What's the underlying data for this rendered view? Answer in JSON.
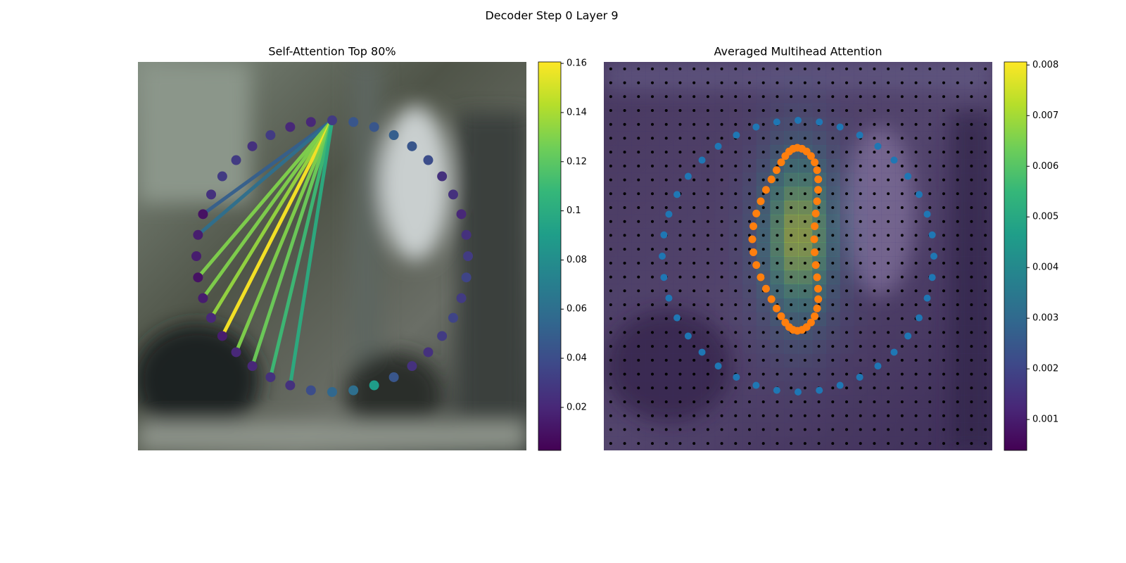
{
  "title": "Decoder Step 0 Layer 9",
  "chart_data": [
    {
      "type": "scatter",
      "title": "Self-Attention Top 80%",
      "colormap": "viridis",
      "values": [
        0.03,
        0.02,
        0.02,
        0.03,
        0.025,
        0.03,
        0.03,
        0.025,
        0.01,
        0.015,
        0.015,
        0.01,
        0.015,
        0.02,
        0.015,
        0.02,
        0.02,
        0.025,
        0.025,
        0.04,
        0.055,
        0.06,
        0.09,
        0.045,
        0.025,
        0.025,
        0.03,
        0.035,
        0.03,
        0.035,
        0.03,
        0.025,
        0.02,
        0.025,
        0.025,
        0.04,
        0.045,
        0.05,
        0.045,
        0.045
      ],
      "attention": [
        null,
        null,
        null,
        null,
        null,
        null,
        null,
        null,
        0.05,
        0.06,
        null,
        0.13,
        0.13,
        0.135,
        0.16,
        0.13,
        0.125,
        0.11,
        0.1,
        null,
        null,
        null,
        null,
        null,
        null,
        null,
        null,
        null,
        null,
        null,
        null,
        null,
        null,
        null,
        null,
        null,
        null,
        null,
        null,
        null
      ],
      "clim": [
        0.0025,
        0.1606
      ],
      "cticks": [
        0.02,
        0.04,
        0.06,
        0.08,
        0.1,
        0.12,
        0.14,
        0.16
      ]
    },
    {
      "type": "heatmap",
      "title": "Averaged Multihead Attention",
      "colormap": "viridis",
      "marker_colors": [
        "#1f77b4",
        "#ff7f0e"
      ],
      "clim": [
        0.00039,
        0.00806
      ],
      "cticks": [
        0.001,
        0.002,
        0.003,
        0.004,
        0.005,
        0.006,
        0.007,
        0.008
      ]
    }
  ]
}
